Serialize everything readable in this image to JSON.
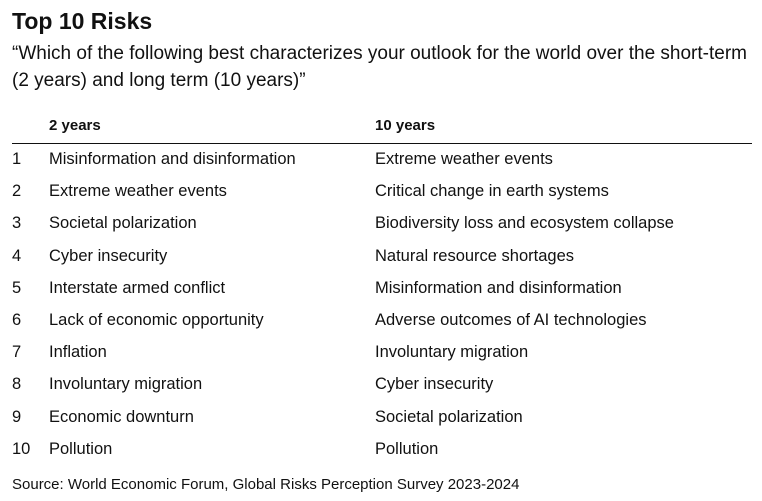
{
  "header": {
    "title": "Top 10 Risks",
    "subtitle": "“Which of the following best characterizes your outlook for the world over the short-term (2 years) and long term (10 years)”"
  },
  "table": {
    "columns": [
      "2 years",
      "10 years"
    ],
    "rows": [
      [
        1,
        "Misinformation and disinformation",
        "Extreme weather events"
      ],
      [
        2,
        "Extreme weather events",
        "Critical change in earth systems"
      ],
      [
        3,
        "Societal polarization",
        "Biodiversity loss and ecosystem collapse"
      ],
      [
        4,
        "Cyber insecurity",
        "Natural resource shortages"
      ],
      [
        5,
        "Interstate armed conflict",
        "Misinformation and disinformation"
      ],
      [
        6,
        "Lack of economic opportunity",
        "Adverse outcomes of AI technologies"
      ],
      [
        7,
        "Inflation",
        "Involuntary migration"
      ],
      [
        8,
        "Involuntary migration",
        "Cyber insecurity"
      ],
      [
        9,
        "Economic downturn",
        "Societal polarization"
      ],
      [
        10,
        "Pollution",
        "Pollution"
      ]
    ]
  },
  "source": "Source: World Economic Forum, Global Risks Perception Survey 2023-2024"
}
